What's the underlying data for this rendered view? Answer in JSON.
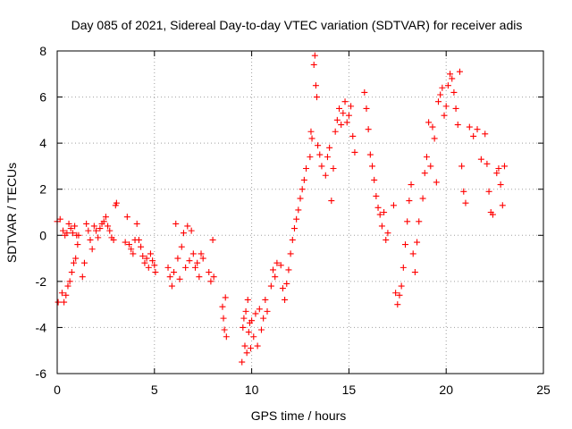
{
  "chart_data": {
    "type": "scatter",
    "title": "Day 085 of 2021, Sidereal Day-to-day VTEC variation (SDTVAR) for receiver adis",
    "xlabel": "GPS time / hours",
    "ylabel": "SDTVAR / TECUs",
    "xlim": [
      0,
      25
    ],
    "ylim": [
      -6,
      8
    ],
    "xticks": [
      0,
      5,
      10,
      15,
      20,
      25
    ],
    "yticks": [
      -6,
      -4,
      -2,
      0,
      2,
      4,
      6,
      8
    ],
    "xtick_labels": [
      "0",
      "5",
      "10",
      "15",
      "20",
      "25"
    ],
    "ytick_labels": [
      "-6",
      "-4",
      "-2",
      "0",
      "2",
      "4",
      "6",
      "8"
    ],
    "grid": true,
    "marker": "+",
    "series": [
      {
        "name": "SDTVAR",
        "color": "#ff0000",
        "points": [
          [
            0.0,
            0.6
          ],
          [
            0.05,
            -2.9
          ],
          [
            0.15,
            0.7
          ],
          [
            0.25,
            -2.5
          ],
          [
            0.3,
            0.2
          ],
          [
            0.35,
            -2.9
          ],
          [
            0.4,
            0.0
          ],
          [
            0.45,
            -2.6
          ],
          [
            0.5,
            0.1
          ],
          [
            0.55,
            -2.2
          ],
          [
            0.6,
            0.5
          ],
          [
            0.65,
            -2.0
          ],
          [
            0.7,
            0.3
          ],
          [
            0.75,
            -1.6
          ],
          [
            0.8,
            0.1
          ],
          [
            0.85,
            -1.2
          ],
          [
            0.9,
            0.4
          ],
          [
            0.95,
            -1.0
          ],
          [
            1.0,
            0.0
          ],
          [
            1.05,
            -0.4
          ],
          [
            1.1,
            0.0
          ],
          [
            1.3,
            -1.8
          ],
          [
            1.4,
            -1.2
          ],
          [
            1.5,
            0.5
          ],
          [
            1.6,
            0.2
          ],
          [
            1.7,
            -0.2
          ],
          [
            1.8,
            -0.6
          ],
          [
            1.9,
            0.4
          ],
          [
            2.0,
            0.2
          ],
          [
            2.1,
            -0.1
          ],
          [
            2.2,
            0.3
          ],
          [
            2.3,
            0.5
          ],
          [
            2.4,
            0.6
          ],
          [
            2.5,
            0.8
          ],
          [
            2.6,
            0.4
          ],
          [
            2.7,
            0.2
          ],
          [
            2.8,
            -0.1
          ],
          [
            2.9,
            -0.2
          ],
          [
            3.0,
            1.3
          ],
          [
            3.05,
            1.4
          ],
          [
            3.5,
            -0.3
          ],
          [
            3.6,
            0.8
          ],
          [
            3.7,
            -0.4
          ],
          [
            3.8,
            -0.6
          ],
          [
            3.9,
            -0.8
          ],
          [
            4.0,
            -0.2
          ],
          [
            4.1,
            0.5
          ],
          [
            4.2,
            -0.2
          ],
          [
            4.3,
            -0.5
          ],
          [
            4.4,
            -0.9
          ],
          [
            4.5,
            -1.2
          ],
          [
            4.6,
            -1.0
          ],
          [
            4.7,
            -1.4
          ],
          [
            4.8,
            -0.8
          ],
          [
            4.9,
            -1.1
          ],
          [
            5.0,
            -1.3
          ],
          [
            5.05,
            -1.6
          ],
          [
            5.7,
            -1.4
          ],
          [
            5.8,
            -1.8
          ],
          [
            5.9,
            -2.2
          ],
          [
            6.0,
            -1.6
          ],
          [
            6.1,
            0.5
          ],
          [
            6.2,
            -1.0
          ],
          [
            6.3,
            -1.9
          ],
          [
            6.4,
            -0.5
          ],
          [
            6.5,
            0.1
          ],
          [
            6.6,
            -1.4
          ],
          [
            6.7,
            0.4
          ],
          [
            6.8,
            -1.1
          ],
          [
            6.9,
            0.2
          ],
          [
            7.0,
            -0.8
          ],
          [
            7.1,
            -1.4
          ],
          [
            7.2,
            -1.2
          ],
          [
            7.3,
            -1.8
          ],
          [
            7.4,
            -0.8
          ],
          [
            7.5,
            -1.0
          ],
          [
            7.8,
            -1.6
          ],
          [
            7.9,
            -2.0
          ],
          [
            8.0,
            -0.2
          ],
          [
            8.05,
            -1.8
          ],
          [
            8.5,
            -3.1
          ],
          [
            8.55,
            -3.6
          ],
          [
            8.6,
            -4.1
          ],
          [
            8.65,
            -2.7
          ],
          [
            8.7,
            -4.4
          ],
          [
            9.5,
            -5.5
          ],
          [
            9.55,
            -4.0
          ],
          [
            9.6,
            -3.6
          ],
          [
            9.65,
            -4.8
          ],
          [
            9.7,
            -3.3
          ],
          [
            9.75,
            -5.1
          ],
          [
            9.8,
            -2.8
          ],
          [
            9.85,
            -4.2
          ],
          [
            9.9,
            -3.8
          ],
          [
            9.95,
            -4.9
          ],
          [
            10.0,
            -3.7
          ],
          [
            10.1,
            -4.4
          ],
          [
            10.2,
            -3.4
          ],
          [
            10.3,
            -4.8
          ],
          [
            10.4,
            -3.2
          ],
          [
            10.5,
            -4.1
          ],
          [
            10.6,
            -3.6
          ],
          [
            10.7,
            -2.8
          ],
          [
            10.8,
            -3.3
          ],
          [
            11.0,
            -2.2
          ],
          [
            11.1,
            -1.5
          ],
          [
            11.2,
            -1.8
          ],
          [
            11.3,
            -1.2
          ],
          [
            11.5,
            -1.3
          ],
          [
            11.6,
            -2.3
          ],
          [
            11.7,
            -2.8
          ],
          [
            11.8,
            -2.1
          ],
          [
            11.9,
            -1.5
          ],
          [
            12.0,
            -0.8
          ],
          [
            12.1,
            -0.2
          ],
          [
            12.2,
            0.3
          ],
          [
            12.3,
            0.7
          ],
          [
            12.4,
            1.1
          ],
          [
            12.5,
            1.6
          ],
          [
            12.6,
            2.0
          ],
          [
            12.7,
            2.4
          ],
          [
            12.8,
            2.9
          ],
          [
            13.0,
            3.4
          ],
          [
            13.05,
            4.5
          ],
          [
            13.1,
            4.2
          ],
          [
            13.2,
            7.4
          ],
          [
            13.25,
            7.8
          ],
          [
            13.3,
            6.5
          ],
          [
            13.35,
            6.0
          ],
          [
            13.4,
            3.9
          ],
          [
            13.5,
            3.5
          ],
          [
            13.6,
            3.0
          ],
          [
            13.8,
            2.6
          ],
          [
            13.9,
            3.4
          ],
          [
            14.0,
            3.8
          ],
          [
            14.1,
            1.5
          ],
          [
            14.2,
            2.9
          ],
          [
            14.3,
            4.5
          ],
          [
            14.4,
            5.0
          ],
          [
            14.5,
            5.5
          ],
          [
            14.6,
            4.8
          ],
          [
            14.7,
            5.3
          ],
          [
            14.8,
            5.8
          ],
          [
            14.9,
            4.9
          ],
          [
            15.0,
            5.2
          ],
          [
            15.1,
            5.6
          ],
          [
            15.2,
            4.3
          ],
          [
            15.3,
            3.6
          ],
          [
            15.8,
            6.2
          ],
          [
            15.9,
            5.5
          ],
          [
            16.0,
            4.6
          ],
          [
            16.1,
            3.5
          ],
          [
            16.2,
            3.0
          ],
          [
            16.3,
            2.4
          ],
          [
            16.4,
            1.7
          ],
          [
            16.5,
            1.2
          ],
          [
            16.6,
            0.9
          ],
          [
            16.7,
            0.4
          ],
          [
            16.8,
            1.0
          ],
          [
            16.9,
            -0.2
          ],
          [
            17.0,
            0.1
          ],
          [
            17.3,
            1.3
          ],
          [
            17.4,
            -2.5
          ],
          [
            17.5,
            -3.0
          ],
          [
            17.6,
            -2.6
          ],
          [
            17.7,
            -2.2
          ],
          [
            17.8,
            -1.4
          ],
          [
            17.9,
            -0.4
          ],
          [
            18.0,
            0.6
          ],
          [
            18.1,
            1.5
          ],
          [
            18.2,
            2.2
          ],
          [
            18.3,
            -0.8
          ],
          [
            18.4,
            -1.6
          ],
          [
            18.5,
            -0.3
          ],
          [
            18.6,
            0.6
          ],
          [
            18.8,
            1.6
          ],
          [
            18.9,
            2.7
          ],
          [
            19.0,
            3.4
          ],
          [
            19.1,
            4.9
          ],
          [
            19.2,
            3.0
          ],
          [
            19.3,
            4.7
          ],
          [
            19.4,
            4.2
          ],
          [
            19.5,
            2.3
          ],
          [
            19.6,
            5.8
          ],
          [
            19.7,
            6.1
          ],
          [
            19.8,
            6.4
          ],
          [
            19.9,
            5.2
          ],
          [
            20.0,
            5.6
          ],
          [
            20.1,
            6.5
          ],
          [
            20.2,
            7.0
          ],
          [
            20.3,
            6.8
          ],
          [
            20.4,
            6.2
          ],
          [
            20.5,
            5.5
          ],
          [
            20.6,
            4.8
          ],
          [
            20.7,
            7.1
          ],
          [
            20.8,
            3.0
          ],
          [
            20.9,
            1.9
          ],
          [
            21.0,
            1.4
          ],
          [
            21.2,
            4.7
          ],
          [
            21.4,
            4.3
          ],
          [
            21.6,
            4.6
          ],
          [
            21.8,
            3.3
          ],
          [
            22.0,
            4.4
          ],
          [
            22.1,
            3.1
          ],
          [
            22.2,
            1.9
          ],
          [
            22.3,
            1.0
          ],
          [
            22.4,
            0.9
          ],
          [
            22.6,
            2.7
          ],
          [
            22.7,
            2.9
          ],
          [
            22.8,
            2.2
          ],
          [
            22.9,
            1.3
          ],
          [
            23.0,
            3.0
          ]
        ]
      }
    ]
  }
}
